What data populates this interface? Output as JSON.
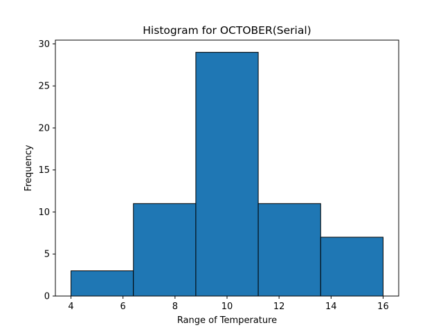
{
  "chart_data": {
    "type": "bar",
    "title": "Histogram for OCTOBER(Serial)",
    "xlabel": "Range of Temperature",
    "ylabel": "Frequency",
    "bin_edges": [
      4,
      6.4,
      8.8,
      11.2,
      13.6,
      16
    ],
    "values": [
      3,
      11,
      29,
      11,
      7
    ],
    "xlim": [
      3.4,
      16.6
    ],
    "ylim": [
      0,
      30.45
    ],
    "xticks": [
      4,
      6,
      8,
      10,
      12,
      14,
      16
    ],
    "yticks": [
      0,
      5,
      10,
      15,
      20,
      25,
      30
    ],
    "bar_color": "#1f77b4",
    "edge_color": "#000000",
    "grid": false,
    "legend": "none"
  }
}
